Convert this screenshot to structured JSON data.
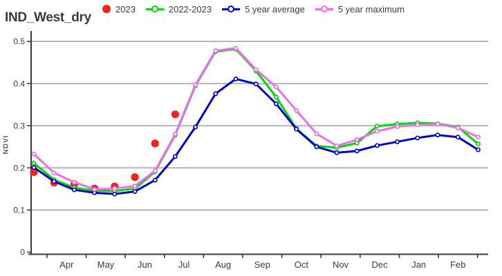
{
  "title": "IND_West_dry",
  "legend": [
    {
      "label": "2023",
      "color": "#f42121",
      "marker": "dot"
    },
    {
      "label": "2022-2023",
      "color": "#00d800",
      "marker": "line-circle"
    },
    {
      "label": "5 year average",
      "color": "#0000cc",
      "marker": "line-circle"
    },
    {
      "label": "5 year maximum",
      "color": "#ee6cee",
      "marker": "line-circle"
    }
  ],
  "chart_data": {
    "type": "line",
    "title": "IND_West_dry",
    "xlabel": "",
    "ylabel": "NDVI",
    "ylim": [
      0,
      0.5
    ],
    "yticks": [
      0,
      0.1,
      0.2,
      0.3,
      0.4,
      0.5
    ],
    "ytick_labels": [
      "0",
      "0.1",
      "0.2",
      "0.3",
      "0.4",
      "0.5"
    ],
    "month_labels": [
      "Apr",
      "May",
      "Jun",
      "Jul",
      "Aug",
      "Sep",
      "Oct",
      "Nov",
      "Dec",
      "Jan",
      "Feb"
    ],
    "x_note": "23 semi-monthly composites from late Mar to mid Feb; index 0..22",
    "grid": true,
    "legend_position": "top",
    "series": [
      {
        "name": "2023",
        "style": "scatter",
        "color": "#f42121",
        "x_index": [
          0,
          1,
          2,
          3,
          4,
          5,
          6,
          7
        ],
        "values": [
          0.19,
          0.165,
          0.161,
          0.151,
          0.156,
          0.178,
          0.258,
          0.327
        ]
      },
      {
        "name": "2022-2023",
        "style": "line-marker",
        "color": "#00d800",
        "x_index": [
          0,
          1,
          2,
          3,
          4,
          5,
          6,
          7,
          8,
          9,
          10,
          11,
          12,
          13,
          14,
          15,
          16,
          17,
          18,
          19,
          20,
          21,
          22
        ],
        "values": [
          0.211,
          0.172,
          0.153,
          0.146,
          0.145,
          0.151,
          0.191,
          0.278,
          0.395,
          0.476,
          0.482,
          0.43,
          0.368,
          0.293,
          0.252,
          0.248,
          0.259,
          0.299,
          0.304,
          0.307,
          0.305,
          0.297,
          0.257
        ]
      },
      {
        "name": "5 year average",
        "style": "line-marker",
        "color": "#0000cc",
        "x_index": [
          0,
          1,
          2,
          3,
          4,
          5,
          6,
          7,
          8,
          9,
          10,
          11,
          12,
          13,
          14,
          15,
          16,
          17,
          18,
          19,
          20,
          21,
          22
        ],
        "values": [
          0.201,
          0.168,
          0.148,
          0.141,
          0.138,
          0.144,
          0.171,
          0.227,
          0.297,
          0.376,
          0.411,
          0.399,
          0.352,
          0.292,
          0.25,
          0.236,
          0.24,
          0.253,
          0.262,
          0.271,
          0.278,
          0.273,
          0.243
        ]
      },
      {
        "name": "5 year maximum",
        "style": "line-marker",
        "color": "#ee6cee",
        "x_index": [
          0,
          1,
          2,
          3,
          4,
          5,
          6,
          7,
          8,
          9,
          10,
          11,
          12,
          13,
          14,
          15,
          16,
          17,
          18,
          19,
          20,
          21,
          22
        ],
        "values": [
          0.233,
          0.188,
          0.166,
          0.149,
          0.151,
          0.157,
          0.193,
          0.28,
          0.397,
          0.478,
          0.484,
          0.433,
          0.392,
          0.336,
          0.281,
          0.252,
          0.267,
          0.287,
          0.298,
          0.302,
          0.304,
          0.295,
          0.273
        ]
      }
    ],
    "style_colors": {
      "grid": "#b5b5b5",
      "spine": "#3a3a3a",
      "tick_text": "#3a3a3a",
      "marker_fill": "#ffffff"
    }
  }
}
